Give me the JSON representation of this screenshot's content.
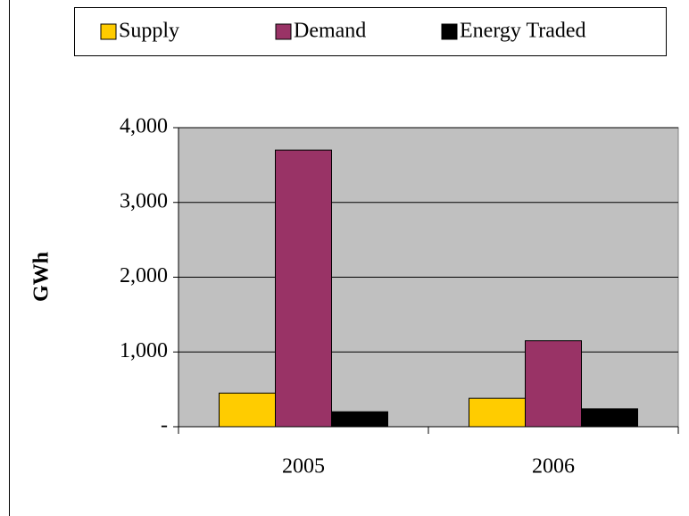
{
  "chart_data": {
    "type": "bar",
    "y_label": "GWh",
    "categories": [
      "2005",
      "2006"
    ],
    "series": [
      {
        "name": "Supply",
        "color": "#ffcc00",
        "values": [
          450,
          380
        ]
      },
      {
        "name": "Demand",
        "color": "#993366",
        "values": [
          3700,
          1150
        ]
      },
      {
        "name": "Energy Traded",
        "color": "#000000",
        "values": [
          200,
          240
        ]
      }
    ],
    "ylim": [
      0,
      4000
    ],
    "yticks": [
      {
        "value": 0,
        "label": "-"
      },
      {
        "value": 1000,
        "label": "1,000"
      },
      {
        "value": 2000,
        "label": "2,000"
      },
      {
        "value": 3000,
        "label": "3,000"
      },
      {
        "value": 4000,
        "label": "4,000"
      }
    ],
    "grid": true,
    "plot_background": "#c0c0c0",
    "legend": "top"
  }
}
